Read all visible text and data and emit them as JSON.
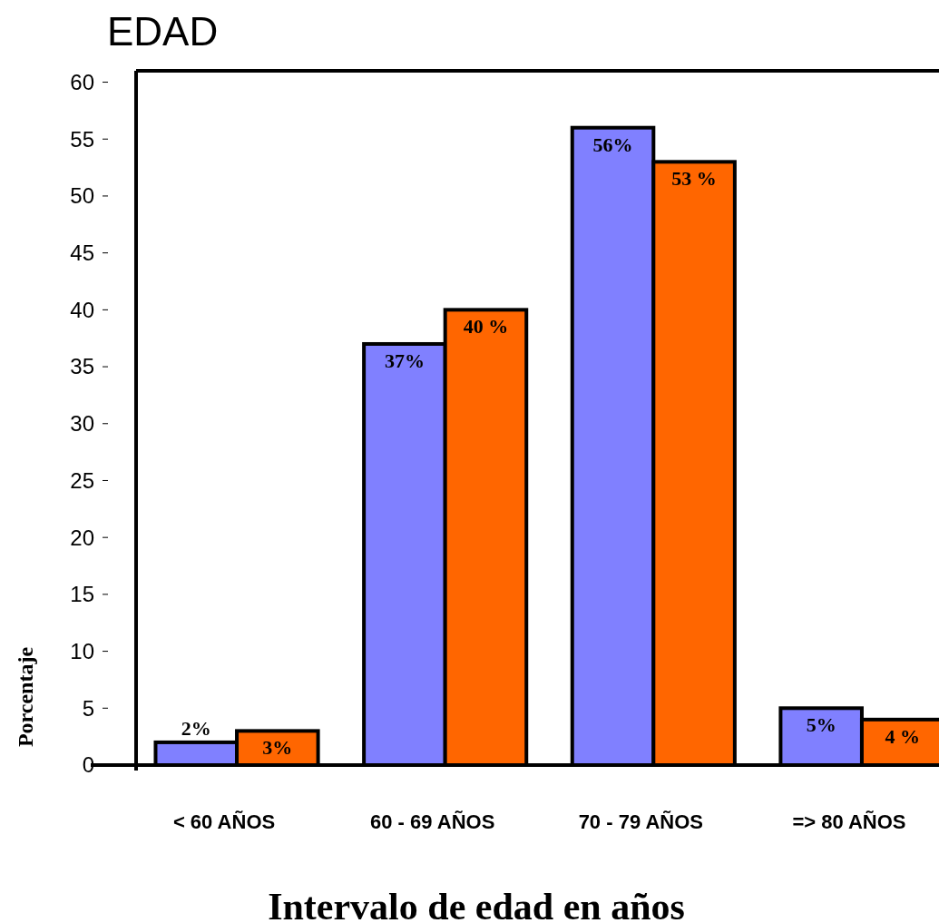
{
  "chart_data": {
    "type": "bar",
    "title": "EDAD",
    "xlabel": "Intervalo de edad en años",
    "ylabel": "Porcentaje",
    "categories": [
      "< 60 AÑOS",
      "60 - 69 AÑOS",
      "70 - 79 AÑOS",
      "=> 80 AÑOS"
    ],
    "series": [
      {
        "color": "#8080ff",
        "values": [
          2,
          37,
          56,
          5
        ],
        "value_labels": [
          "2%",
          "37%",
          "56%",
          "5%"
        ]
      },
      {
        "color": "#ff6600",
        "values": [
          3,
          40,
          53,
          4
        ],
        "value_labels": [
          "3%",
          "40 %",
          "53 %",
          "4 %"
        ]
      }
    ],
    "ylim": [
      0,
      61
    ],
    "yticks": [
      0,
      5,
      10,
      15,
      20,
      25,
      30,
      35,
      40,
      45,
      50,
      55,
      60
    ],
    "grid": false
  }
}
